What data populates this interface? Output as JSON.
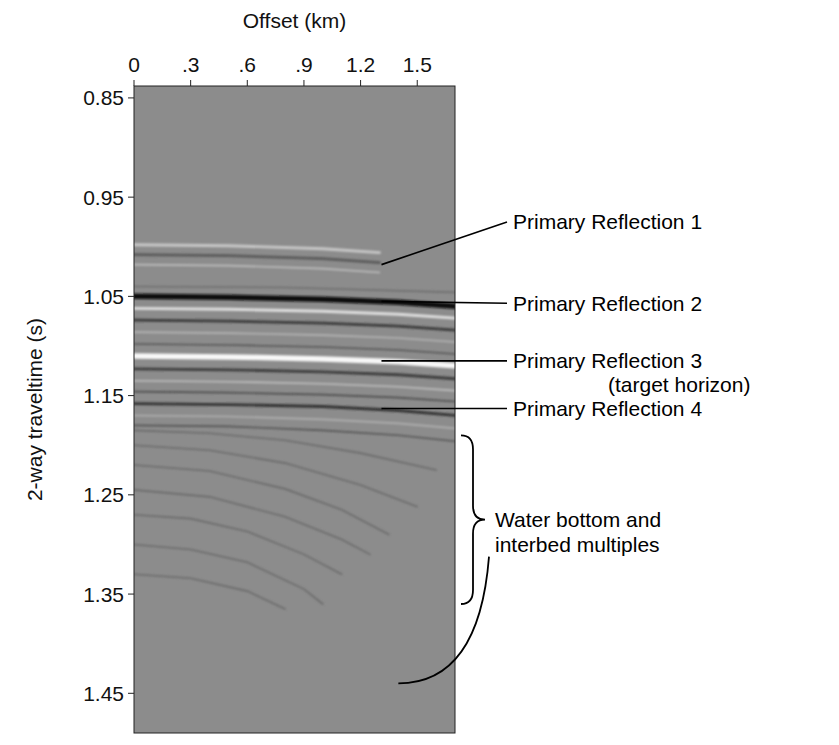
{
  "chart_data": {
    "type": "seismic_gather",
    "x_label": "Offset (km)",
    "y_label": "2-way traveltime (s)",
    "xlim": [
      0,
      1.7
    ],
    "ylim": [
      0.838,
      1.49
    ],
    "xticks": [
      0,
      {
        "value": 0.3,
        "label": ".3"
      },
      {
        "value": 0.6,
        "label": ".6"
      },
      {
        "value": 0.9,
        "label": ".9"
      },
      1.2,
      1.5
    ],
    "yticks": [
      0.85,
      0.95,
      1.05,
      1.15,
      1.25,
      1.35,
      1.45
    ],
    "series": [
      {
        "color": "#c8c8c8",
        "line_style": "medium",
        "x": [
          0,
          0.5,
          1.0,
          1.3
        ],
        "values": [
          0.998,
          0.999,
          1.002,
          1.006
        ]
      },
      {
        "color": "#5a5a5a",
        "line_style": "medium",
        "x": [
          0,
          0.5,
          1.0,
          1.3
        ],
        "values": [
          1.008,
          1.009,
          1.012,
          1.016
        ]
      },
      {
        "color": "#bdbdbd",
        "line_style": "thin",
        "x": [
          0,
          0.5,
          1.0,
          1.3
        ],
        "values": [
          1.018,
          1.019,
          1.022,
          1.026
        ]
      },
      {
        "color": "#6e6e6e",
        "line_style": "thin",
        "x": [
          0,
          0.8,
          1.7
        ],
        "values": [
          1.04,
          1.041,
          1.046
        ]
      },
      {
        "color": "#111111",
        "line_style": "thick",
        "x": [
          0,
          0.5,
          1.0,
          1.4,
          1.7
        ],
        "values": [
          1.05,
          1.051,
          1.053,
          1.056,
          1.06
        ]
      },
      {
        "color": "#e0e0e0",
        "line_style": "medium",
        "x": [
          0,
          0.5,
          1.0,
          1.4,
          1.7
        ],
        "values": [
          1.062,
          1.063,
          1.065,
          1.068,
          1.072
        ]
      },
      {
        "color": "#3a3a3a",
        "line_style": "medium",
        "x": [
          0,
          0.5,
          1.0,
          1.4,
          1.7
        ],
        "values": [
          1.074,
          1.075,
          1.077,
          1.08,
          1.084
        ]
      },
      {
        "color": "#b5b5b5",
        "line_style": "thin",
        "x": [
          0,
          0.5,
          1.0,
          1.4,
          1.7
        ],
        "values": [
          1.086,
          1.087,
          1.089,
          1.092,
          1.096
        ]
      },
      {
        "color": "#555555",
        "line_style": "thin",
        "x": [
          0,
          0.5,
          1.0,
          1.4,
          1.7
        ],
        "values": [
          1.098,
          1.099,
          1.101,
          1.104,
          1.108
        ]
      },
      {
        "color": "#f8f8f8",
        "line_style": "thick",
        "x": [
          0,
          0.5,
          1.0,
          1.4,
          1.7
        ],
        "values": [
          1.11,
          1.111,
          1.113,
          1.116,
          1.12
        ]
      },
      {
        "color": "#3c3c3c",
        "line_style": "medium",
        "x": [
          0,
          0.5,
          1.0,
          1.4,
          1.7
        ],
        "values": [
          1.123,
          1.124,
          1.126,
          1.129,
          1.133
        ]
      },
      {
        "color": "#c0c0c0",
        "line_style": "thin",
        "x": [
          0,
          0.5,
          1.0,
          1.4,
          1.7
        ],
        "values": [
          1.135,
          1.136,
          1.138,
          1.141,
          1.145
        ]
      },
      {
        "color": "#4d4d4d",
        "line_style": "thin",
        "x": [
          0,
          0.5,
          1.0,
          1.4,
          1.7
        ],
        "values": [
          1.146,
          1.147,
          1.149,
          1.152,
          1.156
        ]
      },
      {
        "color": "#333333",
        "line_style": "medium",
        "x": [
          0,
          0.5,
          1.0,
          1.4,
          1.7
        ],
        "values": [
          1.158,
          1.159,
          1.161,
          1.165,
          1.17
        ]
      },
      {
        "color": "#b0b0b0",
        "line_style": "thin",
        "x": [
          0,
          0.5,
          1.0,
          1.4,
          1.7
        ],
        "values": [
          1.17,
          1.171,
          1.174,
          1.178,
          1.183
        ]
      },
      {
        "color": "#555555",
        "line_style": "thin",
        "x": [
          0,
          0.5,
          1.0,
          1.4,
          1.7
        ],
        "values": [
          1.18,
          1.181,
          1.185,
          1.19,
          1.196
        ]
      },
      {
        "color": "#6a6a6a",
        "line_style": "thin",
        "x": [
          0,
          0.4,
          0.8,
          1.2,
          1.6
        ],
        "values": [
          1.185,
          1.188,
          1.195,
          1.208,
          1.225
        ]
      },
      {
        "color": "#6a6a6a",
        "line_style": "thin",
        "x": [
          0,
          0.4,
          0.8,
          1.2,
          1.5
        ],
        "values": [
          1.2,
          1.205,
          1.218,
          1.24,
          1.262
        ]
      },
      {
        "color": "#6a6a6a",
        "line_style": "thin",
        "x": [
          0,
          0.4,
          0.8,
          1.1,
          1.35
        ],
        "values": [
          1.22,
          1.226,
          1.244,
          1.265,
          1.29
        ]
      },
      {
        "color": "#6a6a6a",
        "line_style": "thin",
        "x": [
          0,
          0.4,
          0.8,
          1.1,
          1.25
        ],
        "values": [
          1.245,
          1.252,
          1.272,
          1.295,
          1.31
        ]
      },
      {
        "color": "#6a6a6a",
        "line_style": "thin",
        "x": [
          0,
          0.3,
          0.6,
          0.9,
          1.1
        ],
        "values": [
          1.27,
          1.274,
          1.287,
          1.31,
          1.33
        ]
      },
      {
        "color": "#6a6a6a",
        "line_style": "thin",
        "x": [
          0,
          0.3,
          0.6,
          0.9,
          1.0
        ],
        "values": [
          1.3,
          1.305,
          1.318,
          1.345,
          1.36
        ]
      },
      {
        "color": "#6a6a6a",
        "line_style": "thin",
        "x": [
          0,
          0.3,
          0.6,
          0.8
        ],
        "values": [
          1.33,
          1.334,
          1.347,
          1.365
        ]
      }
    ],
    "annotations": [
      {
        "text": "Primary Reflection 1",
        "x": 1.3,
        "t": 1.018,
        "label_t": 0.975
      },
      {
        "text": "Primary Reflection 2",
        "x": 1.3,
        "t": 1.055,
        "label_t": 1.057
      },
      {
        "text": "Primary Reflection 3",
        "subtext": "(target horizon)",
        "x": 1.3,
        "t": 1.115,
        "label_t": 1.115
      },
      {
        "text": "Primary Reflection 4",
        "x": 1.3,
        "t": 1.163,
        "label_t": 1.163
      },
      {
        "text": [
          "Water bottom and",
          "interbed multiples"
        ],
        "bracket": [
          1.19,
          1.36
        ],
        "x": 1.4,
        "t": 1.44
      }
    ]
  }
}
